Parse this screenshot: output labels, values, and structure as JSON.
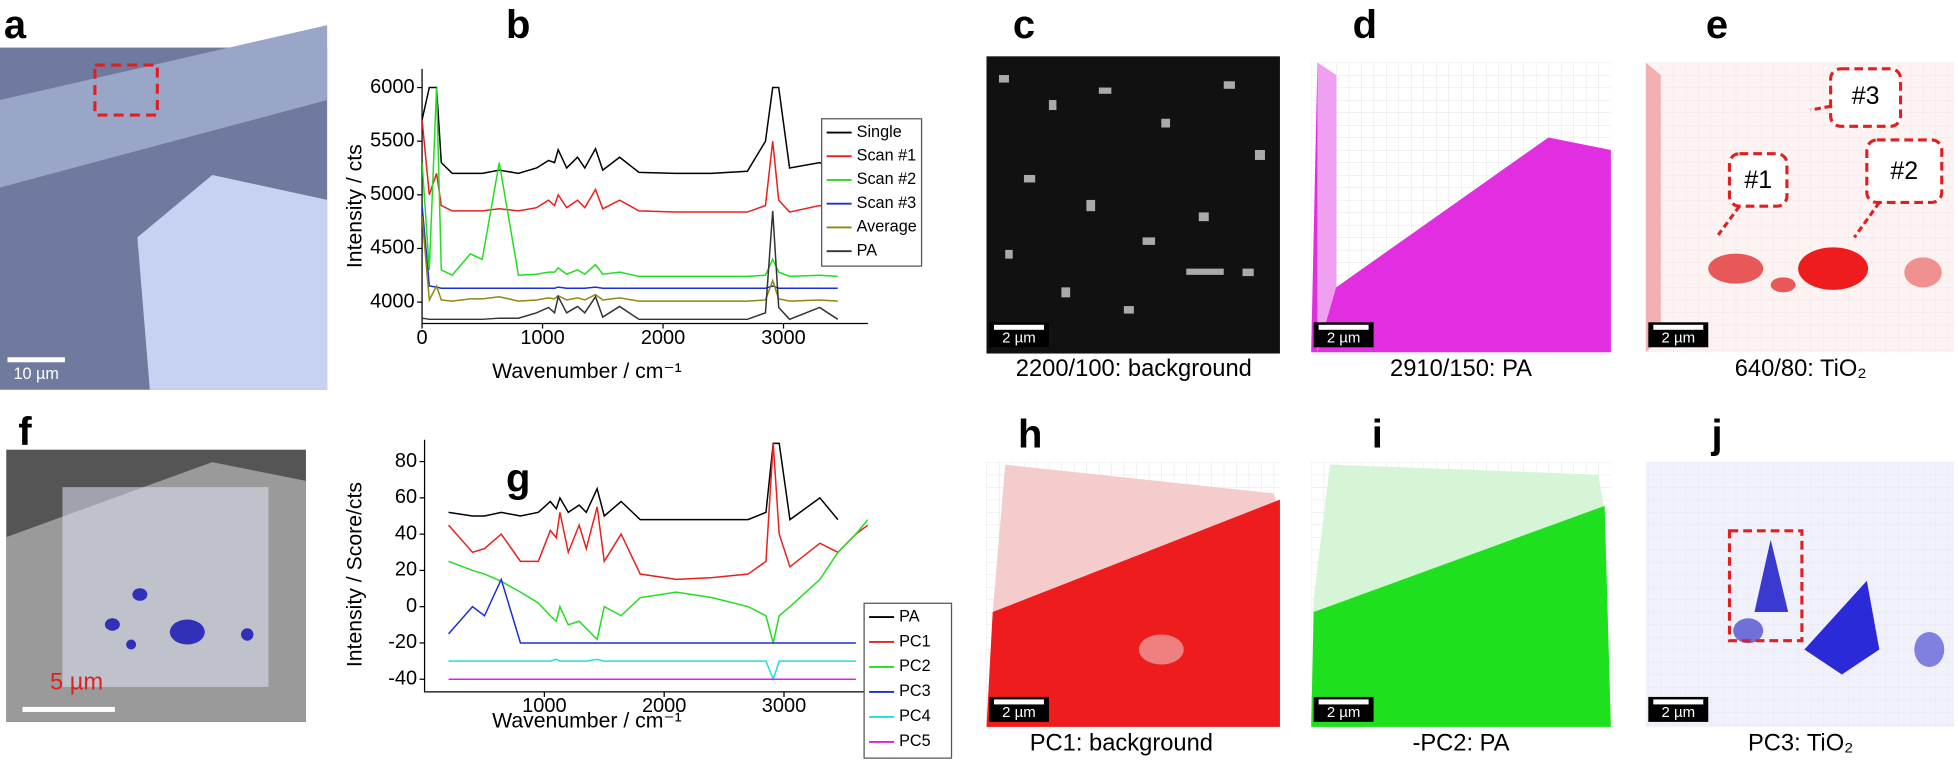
{
  "panels": {
    "a": {
      "letter": "a",
      "scale": "10 µm"
    },
    "b": {
      "letter": "b"
    },
    "c": {
      "letter": "c",
      "scale": "2 µm",
      "caption": "2200/100: background"
    },
    "d": {
      "letter": "d",
      "scale": "2 µm",
      "caption": "2910/150: PA"
    },
    "e": {
      "letter": "e",
      "scale": "2 µm",
      "caption": "640/80: TiO₂",
      "callouts": [
        "#1",
        "#2",
        "#3"
      ]
    },
    "f": {
      "letter": "f",
      "scale": "5 µm"
    },
    "g": {
      "letter": "g"
    },
    "h": {
      "letter": "h",
      "scale": "2 µm",
      "caption": "PC1: background"
    },
    "i": {
      "letter": "i",
      "scale": "2 µm",
      "caption": "-PC2: PA"
    },
    "j": {
      "letter": "j",
      "scale": "2 µm",
      "caption": "PC3: TiO₂"
    }
  },
  "chart_data": [
    {
      "type": "line",
      "x_label": "Wavenumber / cm⁻¹",
      "y_label": "Intensity / cts",
      "x": [
        0,
        60,
        120,
        160,
        250,
        400,
        500,
        640,
        800,
        950,
        1050,
        1100,
        1130,
        1200,
        1290,
        1350,
        1440,
        1500,
        1640,
        1800,
        2100,
        2400,
        2700,
        2850,
        2910,
        2960,
        3050,
        3300,
        3450
      ],
      "xlim": [
        0,
        3700
      ],
      "xticks": [
        0,
        1000,
        2000,
        3000
      ],
      "ylim": [
        3800,
        6000
      ],
      "yticks": [
        4000,
        4500,
        5000,
        5500,
        6000
      ],
      "series": [
        {
          "name": "Single",
          "color": "#000000",
          "values": [
            5700,
            6000,
            6000,
            5300,
            5200,
            5200,
            5200,
            5230,
            5200,
            5250,
            5320,
            5300,
            5420,
            5250,
            5350,
            5250,
            5430,
            5230,
            5350,
            5210,
            5200,
            5200,
            5220,
            5500,
            6000,
            6000,
            5250,
            5300,
            5210
          ]
        },
        {
          "name": "Scan #1",
          "color": "#e8201e",
          "values": [
            5700,
            5000,
            5200,
            4900,
            4850,
            4850,
            4850,
            4870,
            4850,
            4880,
            4950,
            4900,
            5000,
            4880,
            4950,
            4880,
            5050,
            4870,
            4950,
            4850,
            4840,
            4840,
            4840,
            4900,
            5500,
            4950,
            4840,
            4900,
            4850
          ]
        },
        {
          "name": "Scan #2",
          "color": "#22dd22",
          "values": [
            5300,
            4300,
            6000,
            4300,
            4250,
            4450,
            4400,
            5300,
            4250,
            4260,
            4280,
            4280,
            4320,
            4260,
            4300,
            4260,
            4350,
            4260,
            4280,
            4240,
            4240,
            4240,
            4240,
            4250,
            4400,
            4280,
            4240,
            4250,
            4240
          ]
        },
        {
          "name": "Scan #3",
          "color": "#1c2ed6",
          "values": [
            4900,
            4150,
            4140,
            4130,
            4130,
            4130,
            4130,
            4130,
            4130,
            4130,
            4130,
            4130,
            4140,
            4130,
            4130,
            4130,
            4140,
            4130,
            4130,
            4130,
            4130,
            4130,
            4130,
            4130,
            4150,
            4130,
            4130,
            4130,
            4130
          ]
        },
        {
          "name": "Average",
          "color": "#8a8a10",
          "values": [
            4800,
            4020,
            4150,
            4020,
            4010,
            4030,
            4030,
            4050,
            4010,
            4020,
            4040,
            4030,
            4060,
            4020,
            4040,
            4020,
            4070,
            4020,
            4040,
            4010,
            4010,
            4010,
            4010,
            4020,
            4200,
            4030,
            4010,
            4020,
            4010
          ]
        },
        {
          "name": "PA",
          "color": "#333333",
          "values": [
            3850,
            3840,
            3840,
            3840,
            3840,
            3840,
            3840,
            3850,
            3850,
            3900,
            3950,
            3900,
            4050,
            3900,
            3960,
            3900,
            4050,
            3860,
            3960,
            3840,
            3840,
            3840,
            3840,
            3900,
            4850,
            3950,
            3840,
            3950,
            3840
          ]
        }
      ]
    },
    {
      "type": "line",
      "x_label": "Wavenumber / cm⁻¹",
      "y_label": "Intensity / Score/cts",
      "x": [
        200,
        400,
        500,
        640,
        800,
        950,
        1050,
        1100,
        1130,
        1200,
        1290,
        1350,
        1440,
        1500,
        1640,
        1800,
        2100,
        2400,
        2700,
        2850,
        2910,
        2960,
        3050,
        3300,
        3450,
        3600,
        3700
      ],
      "xlim": [
        0,
        3700
      ],
      "xticks": [
        1000,
        2000,
        3000
      ],
      "ylim": [
        -47,
        90
      ],
      "yticks": [
        -40,
        -20,
        0,
        20,
        40,
        60,
        80
      ],
      "series": [
        {
          "name": "PA",
          "color": "#000000",
          "values": [
            52,
            50,
            50,
            52,
            50,
            52,
            58,
            54,
            60,
            52,
            56,
            52,
            65,
            50,
            58,
            48,
            48,
            48,
            48,
            52,
            90,
            90,
            48,
            60,
            48,
            null,
            null
          ]
        },
        {
          "name": "PC1",
          "color": "#e8201e",
          "values": [
            45,
            30,
            32,
            40,
            25,
            25,
            42,
            38,
            52,
            30,
            45,
            32,
            55,
            25,
            40,
            18,
            15,
            16,
            18,
            25,
            90,
            40,
            22,
            35,
            30,
            40,
            45
          ]
        },
        {
          "name": "PC2",
          "color": "#22dd22",
          "values": [
            25,
            20,
            18,
            14,
            8,
            2,
            -5,
            -8,
            0,
            -10,
            -8,
            -12,
            -18,
            0,
            -5,
            5,
            8,
            5,
            0,
            -5,
            -20,
            -5,
            0,
            15,
            30,
            40,
            48
          ]
        },
        {
          "name": "PC3",
          "color": "#1c2ed6",
          "values": [
            -15,
            0,
            -5,
            15,
            -20,
            -20,
            -20,
            -20,
            -20,
            -20,
            -20,
            -20,
            -20,
            -20,
            -20,
            -20,
            -20,
            -20,
            -20,
            -20,
            -20,
            -20,
            -20,
            -20,
            -20,
            -20,
            null
          ]
        },
        {
          "name": "PC4",
          "color": "#22dddd",
          "values": [
            -30,
            -30,
            -30,
            -30,
            -30,
            -30,
            -30,
            -29,
            -30,
            -30,
            -30,
            -30,
            -29,
            -30,
            -30,
            -30,
            -30,
            -30,
            -30,
            -30,
            -40,
            -30,
            -30,
            -30,
            -30,
            -30,
            null
          ]
        },
        {
          "name": "PC5",
          "color": "#e020e0",
          "values": [
            -40,
            -40,
            -40,
            -40,
            -40,
            -40,
            -40,
            -40,
            -40,
            -40,
            -40,
            -40,
            -40,
            -40,
            -40,
            -40,
            -40,
            -40,
            -40,
            -40,
            -40,
            -40,
            -40,
            -40,
            -40,
            -40,
            null
          ]
        }
      ]
    }
  ]
}
